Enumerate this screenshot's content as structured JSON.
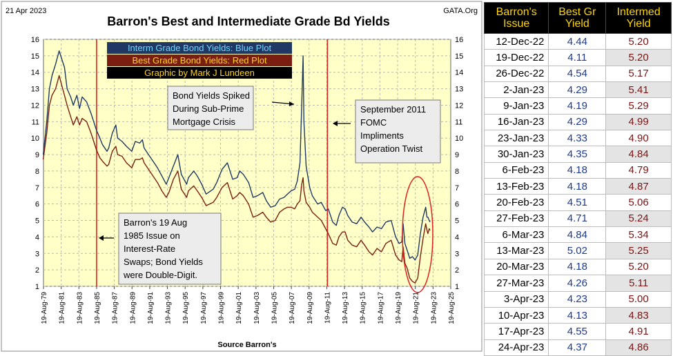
{
  "header": {
    "date": "21 Apr 2023",
    "title": "Barron's Best and Intermediate Grade Bd Yields",
    "source": "GATA.Org"
  },
  "chart_data": {
    "type": "line",
    "title": "Barron's Best and Intermediate Grade Bd Yields",
    "xlabel": "Source Barron's",
    "ylabel": "",
    "xlim": [
      1979.63,
      2025.63
    ],
    "ylim": [
      1,
      16
    ],
    "y_ticks": [
      1,
      2,
      3,
      4,
      5,
      6,
      7,
      8,
      9,
      10,
      11,
      12,
      13,
      14,
      15,
      16
    ],
    "x_tick_labels": [
      "19-Aug-79",
      "19-Aug-81",
      "19-Aug-83",
      "19-Aug-85",
      "19-Aug-87",
      "19-Aug-89",
      "19-Aug-91",
      "19-Aug-93",
      "19-Aug-95",
      "19-Aug-97",
      "19-Aug-99",
      "19-Aug-01",
      "19-Aug-03",
      "19-Aug-05",
      "19-Aug-07",
      "19-Aug-09",
      "19-Aug-11",
      "19-Aug-13",
      "19-Aug-15",
      "19-Aug-17",
      "19-Aug-19",
      "19-Aug-21",
      "19-Aug-23",
      "19-Aug-25"
    ],
    "grid": true,
    "legend": [
      "Interm Grade Bond Yields: Blue Plot",
      "Best Grade Bond Yields: Red Plot",
      "Graphic by Mark J Lundeen"
    ],
    "vlines": [
      1985.63,
      2011.7
    ],
    "series": [
      {
        "name": "Interm Grade Bond Yields: Blue Plot",
        "color": "#1f3864",
        "x": [
          1979.6,
          1980.0,
          1980.3,
          1980.6,
          1981.0,
          1981.4,
          1981.7,
          1982.0,
          1982.3,
          1982.7,
          1983.0,
          1983.4,
          1983.7,
          1984.0,
          1984.5,
          1985.0,
          1985.6,
          1986.0,
          1986.3,
          1986.8,
          1987.0,
          1987.4,
          1987.8,
          1988.0,
          1988.5,
          1989.0,
          1989.6,
          1990.0,
          1990.5,
          1990.8,
          1991.0,
          1991.5,
          1992.0,
          1992.5,
          1993.0,
          1993.5,
          1993.8,
          1994.3,
          1994.8,
          1995.2,
          1995.8,
          1996.0,
          1996.6,
          1997.0,
          1997.5,
          1998.0,
          1998.8,
          1999.2,
          1999.8,
          2000.4,
          2001.0,
          2001.5,
          2001.8,
          2002.2,
          2002.8,
          2003.3,
          2003.8,
          2004.4,
          2004.8,
          2005.3,
          2005.8,
          2006.3,
          2006.8,
          2007.2,
          2007.6,
          2008.0,
          2008.3,
          2008.6,
          2008.8,
          2008.95,
          2009.05,
          2009.3,
          2009.7,
          2010.0,
          2010.6,
          2011.0,
          2011.5,
          2011.8,
          2012.3,
          2012.7,
          2013.0,
          2013.4,
          2013.7,
          2014.0,
          2014.5,
          2015.0,
          2015.5,
          2015.9,
          2016.4,
          2016.8,
          2017.3,
          2017.8,
          2018.3,
          2018.9,
          2019.4,
          2019.8,
          2020.1,
          2020.25,
          2020.45,
          2020.7,
          2021.0,
          2021.3,
          2021.6,
          2021.9,
          2022.2,
          2022.5,
          2022.8,
          2022.95,
          2023.05,
          2023.2,
          2023.3
        ],
        "y": [
          9.0,
          11.0,
          13.0,
          13.8,
          14.5,
          15.3,
          14.8,
          14.3,
          13.0,
          12.5,
          12.0,
          12.6,
          11.8,
          12.5,
          12.2,
          11.5,
          10.5,
          10.0,
          9.6,
          9.2,
          9.4,
          10.3,
          10.8,
          10.0,
          9.8,
          9.5,
          9.2,
          9.8,
          9.7,
          9.9,
          9.4,
          9.0,
          8.6,
          8.2,
          7.7,
          7.2,
          7.6,
          8.3,
          9.0,
          7.8,
          7.2,
          7.6,
          8.0,
          7.7,
          7.2,
          6.6,
          6.9,
          7.3,
          8.1,
          8.5,
          7.5,
          7.6,
          8.0,
          7.8,
          7.3,
          6.4,
          6.5,
          6.7,
          6.2,
          5.8,
          5.9,
          6.3,
          6.4,
          6.6,
          6.8,
          6.9,
          7.4,
          8.5,
          12.0,
          15.0,
          11.0,
          8.3,
          7.0,
          6.5,
          6.0,
          6.1,
          5.6,
          5.7,
          4.9,
          4.7,
          5.3,
          5.8,
          5.7,
          5.3,
          4.9,
          4.8,
          5.2,
          4.9,
          4.6,
          4.3,
          4.6,
          4.5,
          4.9,
          5.0,
          4.0,
          3.6,
          3.7,
          4.8,
          3.6,
          3.2,
          2.7,
          2.8,
          2.6,
          2.9,
          4.2,
          5.2,
          5.8,
          5.2,
          5.2,
          5.0,
          4.9
        ]
      },
      {
        "name": "Best Grade Bond Yields: Red Plot",
        "color": "#7b1e12",
        "x": [
          1979.6,
          1980.0,
          1980.3,
          1980.6,
          1981.0,
          1981.4,
          1981.7,
          1982.0,
          1982.3,
          1982.7,
          1983.0,
          1983.4,
          1983.7,
          1984.0,
          1984.5,
          1985.0,
          1985.6,
          1986.0,
          1986.3,
          1986.8,
          1987.0,
          1987.4,
          1987.8,
          1988.0,
          1988.5,
          1989.0,
          1989.6,
          1990.0,
          1990.5,
          1990.8,
          1991.0,
          1991.5,
          1992.0,
          1992.5,
          1993.0,
          1993.5,
          1993.8,
          1994.3,
          1994.8,
          1995.2,
          1995.8,
          1996.0,
          1996.6,
          1997.0,
          1997.5,
          1998.0,
          1998.8,
          1999.2,
          1999.8,
          2000.4,
          2001.0,
          2001.5,
          2001.8,
          2002.2,
          2002.8,
          2003.3,
          2003.8,
          2004.4,
          2004.8,
          2005.3,
          2005.8,
          2006.3,
          2006.8,
          2007.2,
          2007.6,
          2008.0,
          2008.3,
          2008.6,
          2008.8,
          2008.95,
          2009.05,
          2009.3,
          2009.7,
          2010.0,
          2010.6,
          2011.0,
          2011.5,
          2011.8,
          2012.3,
          2012.7,
          2013.0,
          2013.4,
          2013.7,
          2014.0,
          2014.5,
          2015.0,
          2015.5,
          2015.9,
          2016.4,
          2016.8,
          2017.3,
          2017.8,
          2018.3,
          2018.9,
          2019.4,
          2019.8,
          2020.1,
          2020.25,
          2020.45,
          2020.7,
          2021.0,
          2021.3,
          2021.6,
          2021.9,
          2022.2,
          2022.5,
          2022.8,
          2022.95,
          2023.05,
          2023.2,
          2023.3
        ],
        "y": [
          8.7,
          10.3,
          12.0,
          12.6,
          13.0,
          13.8,
          13.2,
          12.6,
          12.0,
          11.3,
          10.8,
          11.3,
          10.8,
          11.2,
          11.0,
          10.3,
          9.3,
          8.8,
          8.6,
          8.3,
          8.4,
          9.2,
          9.5,
          9.0,
          8.9,
          8.5,
          8.2,
          8.7,
          8.7,
          8.8,
          8.5,
          8.1,
          7.7,
          7.3,
          6.8,
          6.4,
          6.7,
          7.5,
          8.0,
          6.9,
          6.4,
          6.8,
          7.1,
          6.8,
          6.4,
          5.9,
          6.1,
          6.4,
          7.0,
          7.3,
          6.3,
          6.5,
          6.7,
          6.5,
          6.0,
          5.2,
          5.3,
          5.5,
          5.2,
          4.9,
          5.0,
          5.5,
          5.7,
          5.8,
          5.8,
          5.7,
          6.0,
          6.2,
          7.2,
          7.6,
          6.8,
          6.1,
          5.8,
          5.5,
          5.2,
          5.0,
          4.5,
          4.2,
          3.6,
          3.5,
          4.0,
          4.3,
          4.3,
          3.8,
          3.5,
          3.4,
          3.8,
          3.5,
          3.1,
          2.9,
          3.3,
          3.1,
          3.6,
          3.8,
          2.9,
          2.6,
          2.5,
          3.4,
          2.4,
          2.1,
          1.5,
          1.3,
          1.2,
          1.5,
          2.8,
          3.9,
          4.8,
          4.4,
          4.2,
          4.5,
          4.4
        ]
      }
    ]
  },
  "annotations": {
    "crisis": [
      "Bond Yields Spiked",
      "During Sub-Prime",
      "Mortgage Crisis"
    ],
    "twist": [
      "September 2011",
      "FOMC",
      "Impliments",
      "Operation Twist"
    ],
    "barrons1985": [
      "Barron's 19 Aug",
      "1985 Issue on",
      "Interest-Rate",
      "Swaps;  Bond Yields",
      "were Double-Digit."
    ]
  },
  "table": {
    "headers": [
      "Barron's Issue",
      "Best Gr Yield",
      "Intermed Yield"
    ],
    "rows": [
      [
        "12-Dec-22",
        "4.44",
        "5.20"
      ],
      [
        "19-Dec-22",
        "4.11",
        "5.20"
      ],
      [
        "26-Dec-22",
        "4.54",
        "5.17"
      ],
      [
        "2-Jan-23",
        "4.29",
        "5.41"
      ],
      [
        "9-Jan-23",
        "4.19",
        "5.29"
      ],
      [
        "16-Jan-23",
        "4.29",
        "4.99"
      ],
      [
        "23-Jan-23",
        "4.33",
        "4.90"
      ],
      [
        "30-Jan-23",
        "4.35",
        "4.84"
      ],
      [
        "6-Feb-23",
        "4.18",
        "4.79"
      ],
      [
        "13-Feb-23",
        "4.18",
        "4.87"
      ],
      [
        "20-Feb-23",
        "4.51",
        "5.06"
      ],
      [
        "27-Feb-23",
        "4.71",
        "5.24"
      ],
      [
        "6-Mar-23",
        "4.84",
        "5.34"
      ],
      [
        "13-Mar-23",
        "5.02",
        "5.25"
      ],
      [
        "20-Mar-23",
        "4.18",
        "5.20"
      ],
      [
        "27-Mar-23",
        "4.26",
        "5.11"
      ],
      [
        "3-Apr-23",
        "4.23",
        "5.00"
      ],
      [
        "10-Apr-23",
        "4.13",
        "4.83"
      ],
      [
        "17-Apr-23",
        "4.55",
        "4.91"
      ],
      [
        "24-Apr-23",
        "4.37",
        "4.86"
      ]
    ]
  }
}
